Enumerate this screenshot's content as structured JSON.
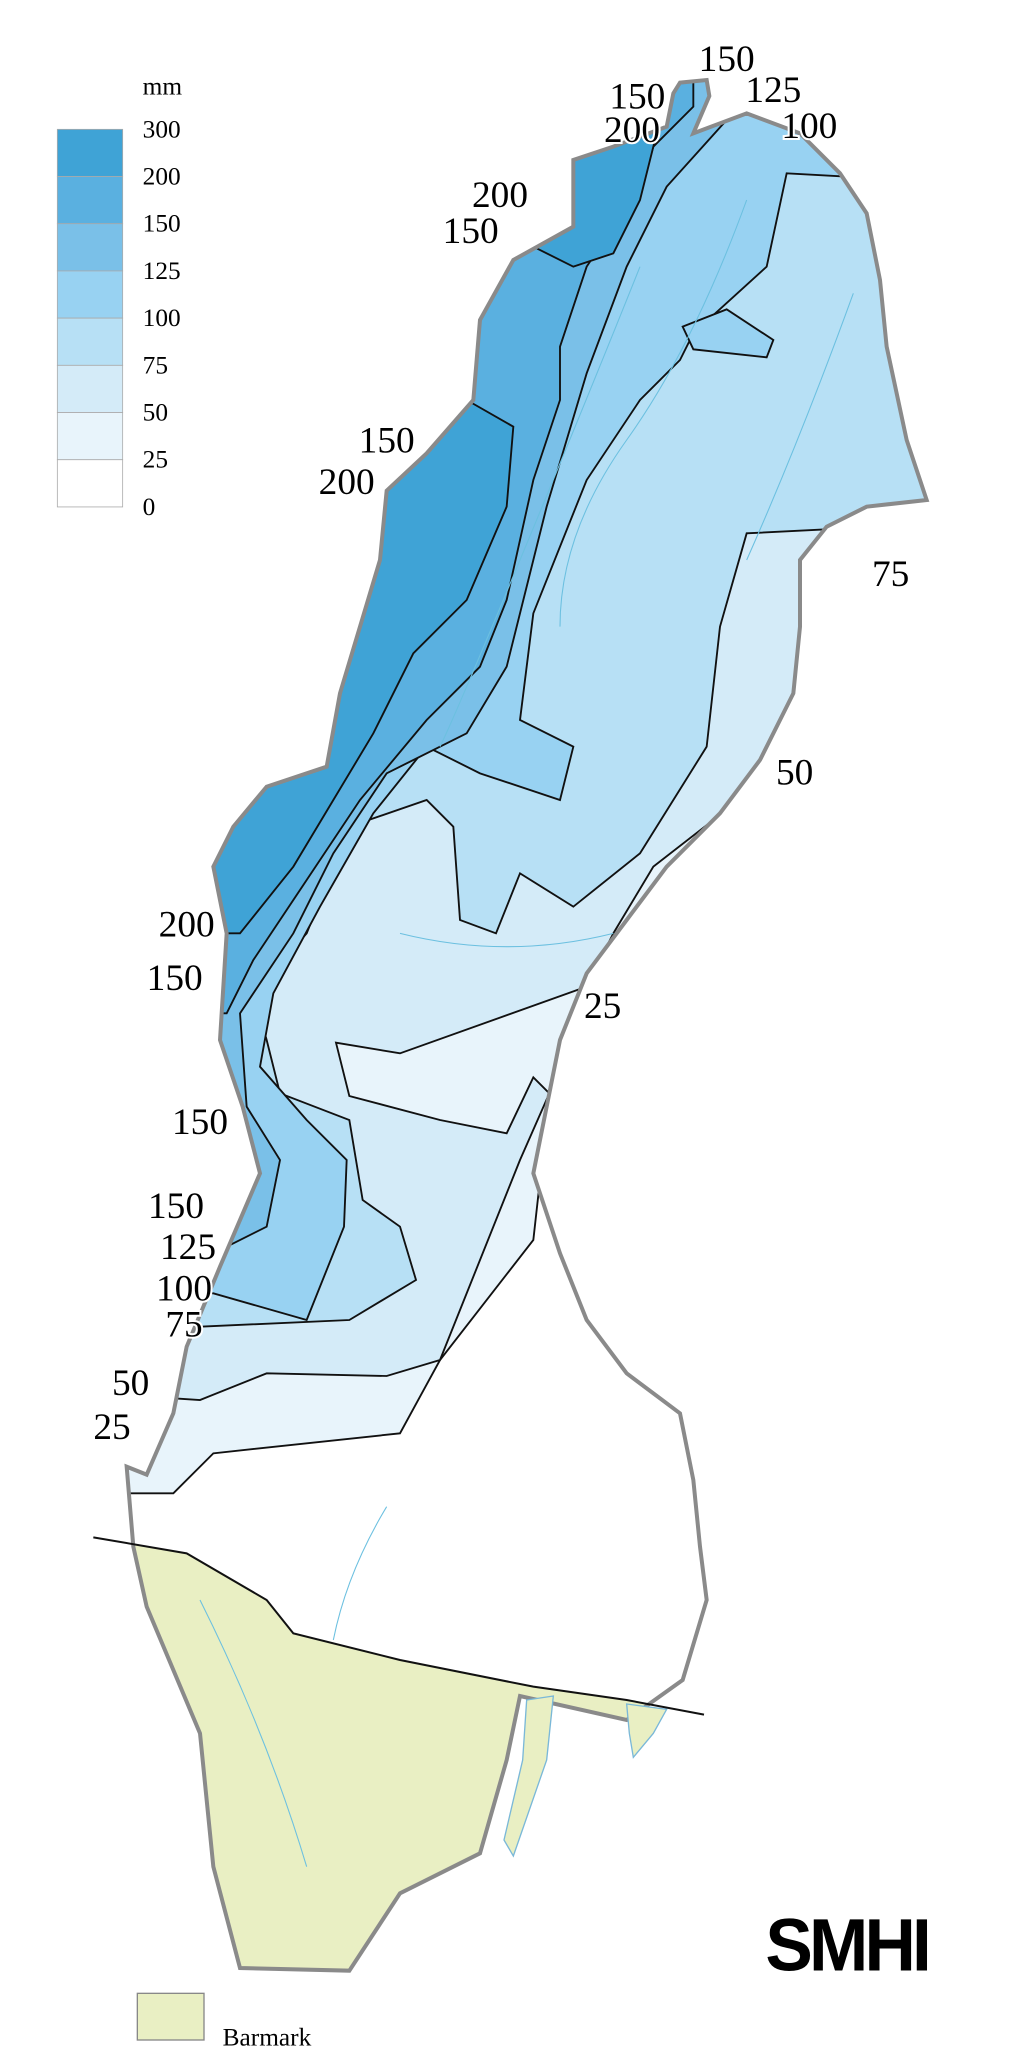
{
  "legend": {
    "unit": "mm",
    "labels": [
      "300",
      "200",
      "150",
      "125",
      "100",
      "75",
      "50",
      "25",
      "0"
    ]
  },
  "contour_labels": [
    "150",
    "150",
    "125",
    "200",
    "100",
    "200",
    "150",
    "150",
    "200",
    "75",
    "50",
    "200",
    "150",
    "25",
    "150",
    "150",
    "125",
    "100",
    "75",
    "50",
    "25"
  ],
  "barmark": "Barmark",
  "logo": "SMHI"
}
